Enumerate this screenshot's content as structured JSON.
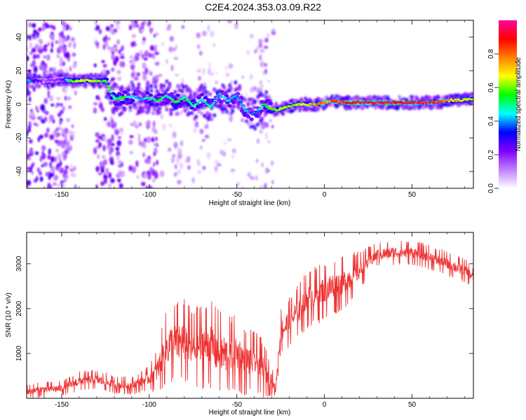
{
  "title": "C2E4.2024.353.03.09.R22",
  "chart_data": [
    {
      "type": "heatmap",
      "xlabel": "Height of straight line (km)",
      "ylabel": "Frequency (Hz)",
      "xlim": [
        -170,
        85
      ],
      "ylim": [
        -50,
        50
      ],
      "xticks": [
        -150,
        -100,
        -50,
        0,
        50
      ],
      "yticks": [
        -40,
        -20,
        0,
        20,
        40
      ],
      "colorbar": {
        "label": "Normalized spectral amplitude",
        "range": [
          0,
          1
        ],
        "ticks": [
          "0.0",
          "0.2",
          "0.4",
          "0.6",
          "0.8"
        ],
        "colors": [
          "#ffffff",
          "#c080ff",
          "#8000ff",
          "#0000ff",
          "#00ffff",
          "#00ff00",
          "#ffff00",
          "#ff8000",
          "#ff0000",
          "#ff00a0"
        ]
      },
      "ridge": [
        {
          "x": -170,
          "y": 14,
          "amp": 0.45
        },
        {
          "x": -160,
          "y": 14,
          "amp": 0.15
        },
        {
          "x": -150,
          "y": 15,
          "amp": 0.2
        },
        {
          "x": -145,
          "y": 14,
          "amp": 0.6
        },
        {
          "x": -135,
          "y": 14,
          "amp": 0.7
        },
        {
          "x": -125,
          "y": 14,
          "amp": 0.55
        },
        {
          "x": -120,
          "y": 3,
          "amp": 0.5
        },
        {
          "x": -115,
          "y": 4,
          "amp": 0.55
        },
        {
          "x": -110,
          "y": 5,
          "amp": 0.45
        },
        {
          "x": -105,
          "y": 3,
          "amp": 0.4
        },
        {
          "x": -100,
          "y": 4,
          "amp": 0.5
        },
        {
          "x": -95,
          "y": 2,
          "amp": 0.55
        },
        {
          "x": -90,
          "y": 5,
          "amp": 0.45
        },
        {
          "x": -85,
          "y": 1,
          "amp": 0.55
        },
        {
          "x": -80,
          "y": 4,
          "amp": 0.5
        },
        {
          "x": -75,
          "y": -1,
          "amp": 0.5
        },
        {
          "x": -70,
          "y": 3,
          "amp": 0.45
        },
        {
          "x": -65,
          "y": -2,
          "amp": 0.5
        },
        {
          "x": -60,
          "y": 6,
          "amp": 0.4
        },
        {
          "x": -55,
          "y": 2,
          "amp": 0.45
        },
        {
          "x": -50,
          "y": 5,
          "amp": 0.4
        },
        {
          "x": -45,
          "y": -4,
          "amp": 0.45
        },
        {
          "x": -40,
          "y": -6,
          "amp": 0.35
        },
        {
          "x": -35,
          "y": 0,
          "amp": 0.5
        },
        {
          "x": -30,
          "y": -3,
          "amp": 0.6
        },
        {
          "x": -25,
          "y": -3,
          "amp": 0.65
        },
        {
          "x": -20,
          "y": -1,
          "amp": 0.6
        },
        {
          "x": -15,
          "y": 0,
          "amp": 0.65
        },
        {
          "x": -10,
          "y": 0,
          "amp": 0.7
        },
        {
          "x": -5,
          "y": 0,
          "amp": 0.75
        },
        {
          "x": 0,
          "y": 1,
          "amp": 0.8
        },
        {
          "x": 5,
          "y": 2,
          "amp": 0.8
        },
        {
          "x": 10,
          "y": 1,
          "amp": 0.85
        },
        {
          "x": 20,
          "y": 1,
          "amp": 0.9
        },
        {
          "x": 30,
          "y": 1,
          "amp": 0.92
        },
        {
          "x": 40,
          "y": 1,
          "amp": 0.92
        },
        {
          "x": 50,
          "y": 1,
          "amp": 0.9
        },
        {
          "x": 60,
          "y": 1,
          "amp": 0.85
        },
        {
          "x": 70,
          "y": 2,
          "amp": 0.75
        },
        {
          "x": 85,
          "y": 3,
          "amp": 0.6
        }
      ]
    },
    {
      "type": "line",
      "xlabel": "Height of straight line (km)",
      "ylabel": "SNR (10 * v/v)",
      "xlim": [
        -170,
        85
      ],
      "ylim": [
        0,
        3700
      ],
      "xticks": [
        -150,
        -100,
        -50,
        0,
        50
      ],
      "yticks": [
        1000,
        2000,
        3000
      ],
      "color": "#ee3333",
      "series": [
        {
          "x": [
            -170,
            -160,
            -150,
            -140,
            -130,
            -120,
            -110,
            -100,
            -95,
            -90,
            -85,
            -80,
            -75,
            -70,
            -65,
            -60,
            -55,
            -50,
            -45,
            -40,
            -35,
            -30,
            -28,
            -25,
            -20,
            -15,
            -10,
            -5,
            0,
            5,
            10,
            15,
            20,
            25,
            30,
            40,
            50,
            60,
            70,
            80,
            85
          ],
          "values": [
            150,
            200,
            220,
            380,
            420,
            300,
            280,
            450,
            650,
            1150,
            1250,
            1250,
            1100,
            1200,
            1200,
            1000,
            950,
            1000,
            800,
            850,
            650,
            400,
            150,
            1500,
            1700,
            1950,
            2200,
            2300,
            2400,
            2500,
            2550,
            2700,
            2850,
            3050,
            3200,
            3250,
            3250,
            3150,
            3000,
            2850,
            2700
          ],
          "noise": [
            150,
            150,
            150,
            200,
            200,
            180,
            180,
            250,
            500,
            800,
            850,
            900,
            800,
            900,
            900,
            900,
            800,
            800,
            700,
            600,
            600,
            300,
            100,
            500,
            500,
            550,
            600,
            600,
            600,
            600,
            550,
            500,
            400,
            300,
            250,
            250,
            250,
            250,
            250,
            250,
            200
          ]
        }
      ]
    }
  ]
}
